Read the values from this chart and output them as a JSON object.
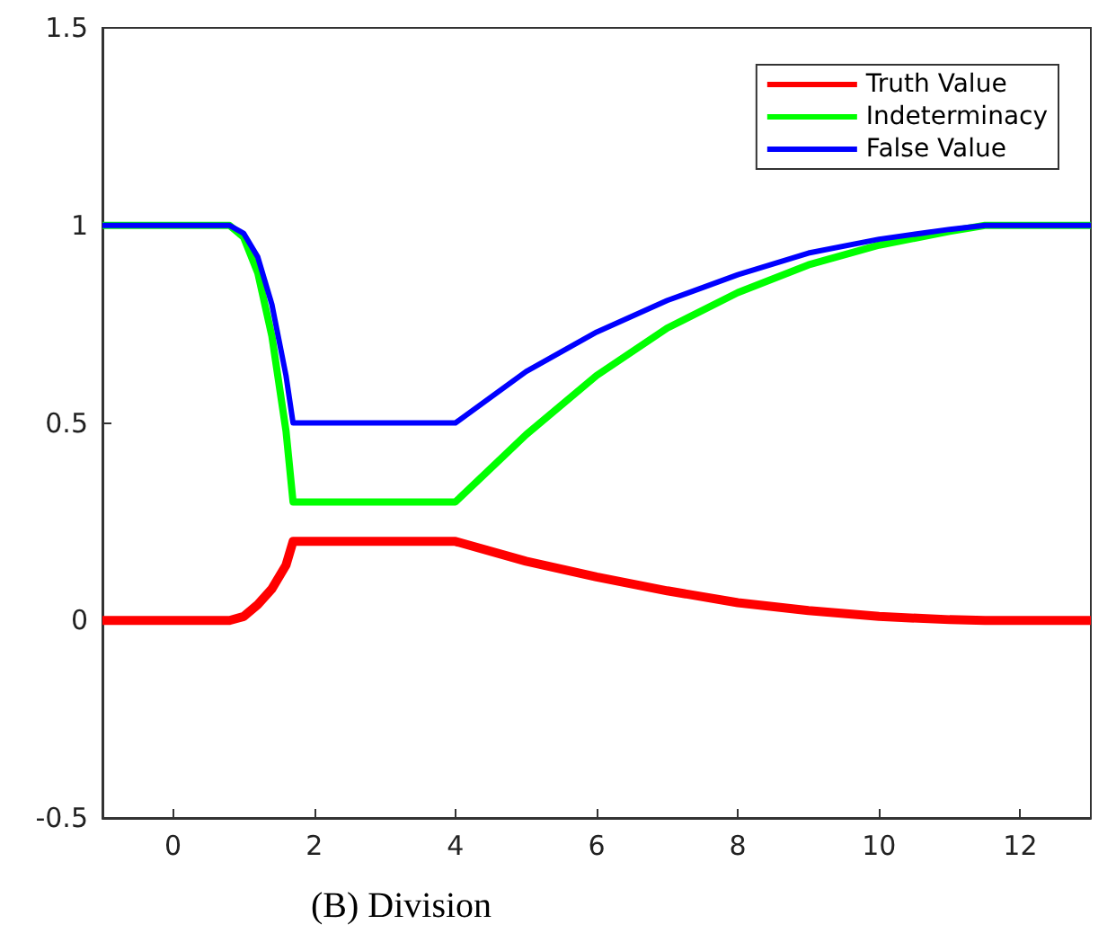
{
  "chart_data": {
    "type": "line",
    "annotations": [
      "(B) Division"
    ],
    "x": [
      -1,
      0.8,
      1.0,
      1.2,
      1.4,
      1.6,
      1.7,
      4,
      5,
      6,
      7,
      8,
      9,
      10,
      11,
      11.5,
      13
    ],
    "series": [
      {
        "name": "Truth Value",
        "color": "#ff0000",
        "values": [
          0,
          0,
          0.01,
          0.04,
          0.08,
          0.14,
          0.2,
          0.2,
          0.15,
          0.11,
          0.075,
          0.045,
          0.025,
          0.01,
          0.002,
          0,
          0
        ]
      },
      {
        "name": "Indeterminacy",
        "color": "#00ff00",
        "values": [
          1,
          1,
          0.97,
          0.88,
          0.72,
          0.48,
          0.3,
          0.3,
          0.47,
          0.62,
          0.74,
          0.83,
          0.9,
          0.95,
          0.985,
          1,
          1
        ]
      },
      {
        "name": "False Value",
        "color": "#0000ff",
        "values": [
          1,
          1,
          0.98,
          0.92,
          0.8,
          0.62,
          0.5,
          0.5,
          0.63,
          0.73,
          0.81,
          0.875,
          0.93,
          0.965,
          0.99,
          1,
          1
        ]
      }
    ],
    "xlim": [
      -1,
      13
    ],
    "xticks": [
      0,
      2,
      4,
      6,
      8,
      10,
      12
    ],
    "ylim": [
      -0.5,
      1.5
    ],
    "yticks": [
      -0.5,
      0,
      0.5,
      1,
      1.5
    ],
    "grid": false,
    "legend": "top right",
    "marker": "none",
    "line_style": "solid"
  }
}
